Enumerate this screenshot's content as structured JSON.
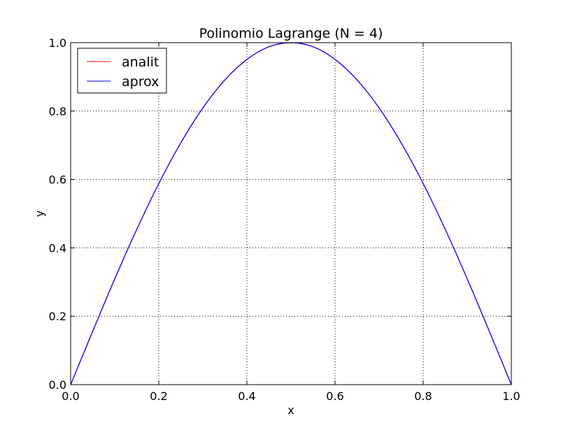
{
  "chart_data": {
    "type": "line",
    "title": "Polinomio Lagrange (N = 4)",
    "xlabel": "x",
    "ylabel": "y",
    "xlim": [
      0.0,
      1.0
    ],
    "ylim": [
      0.0,
      1.0
    ],
    "xticks": [
      "0.0",
      "0.2",
      "0.4",
      "0.6",
      "0.8",
      "1.0"
    ],
    "yticks": [
      "0.0",
      "0.2",
      "0.4",
      "0.6",
      "0.8",
      "1.0"
    ],
    "grid": true,
    "legend_position": "top-left",
    "series": [
      {
        "name": "analit",
        "color": "#ff0000",
        "x": [
          0.0,
          0.05,
          0.1,
          0.15,
          0.2,
          0.25,
          0.3,
          0.35,
          0.4,
          0.45,
          0.5,
          0.55,
          0.6,
          0.65,
          0.7,
          0.75,
          0.8,
          0.85,
          0.9,
          0.95,
          1.0
        ],
        "y": [
          0.0,
          0.156,
          0.309,
          0.454,
          0.588,
          0.707,
          0.809,
          0.891,
          0.951,
          0.988,
          1.0,
          0.988,
          0.951,
          0.891,
          0.809,
          0.707,
          0.588,
          0.454,
          0.309,
          0.156,
          0.0
        ]
      },
      {
        "name": "aprox",
        "color": "#0000ff",
        "x": [
          0.0,
          0.05,
          0.1,
          0.15,
          0.2,
          0.25,
          0.3,
          0.35,
          0.4,
          0.45,
          0.5,
          0.55,
          0.6,
          0.65,
          0.7,
          0.75,
          0.8,
          0.85,
          0.9,
          0.95,
          1.0
        ],
        "y": [
          0.0,
          0.156,
          0.309,
          0.454,
          0.588,
          0.707,
          0.809,
          0.891,
          0.951,
          0.988,
          1.0,
          0.988,
          0.951,
          0.891,
          0.809,
          0.707,
          0.588,
          0.454,
          0.309,
          0.156,
          0.0
        ]
      }
    ]
  }
}
